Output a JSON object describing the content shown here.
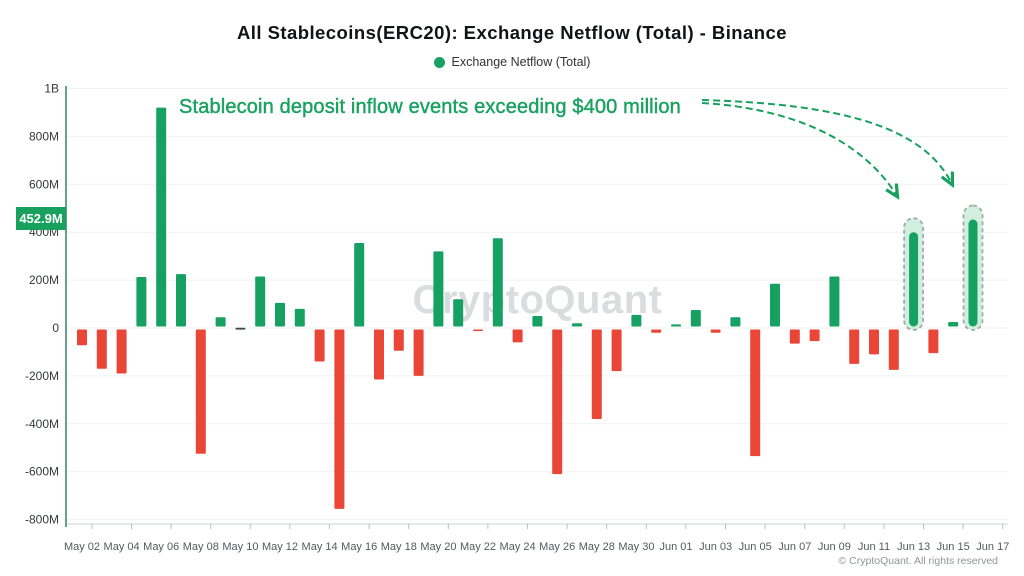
{
  "chart_data": {
    "type": "bar",
    "title": "All Stablecoins(ERC20): Exchange Netflow (Total) - Binance",
    "legend": "Exchange Netflow (Total)",
    "ylabel": "",
    "xlabel": "",
    "unit": "millions USD",
    "categories": [
      "May 02",
      "May 03",
      "May 04",
      "May 05",
      "May 06",
      "May 07",
      "May 08",
      "May 09",
      "May 10",
      "May 11",
      "May 12",
      "May 13",
      "May 14",
      "May 15",
      "May 16",
      "May 17",
      "May 18",
      "May 19",
      "May 20",
      "May 21",
      "May 22",
      "May 23",
      "May 24",
      "May 25",
      "May 26",
      "May 27",
      "May 28",
      "May 29",
      "May 30",
      "May 31",
      "Jun 01",
      "Jun 02",
      "Jun 03",
      "Jun 04",
      "Jun 05",
      "Jun 06",
      "Jun 07",
      "Jun 08",
      "Jun 09",
      "Jun 10",
      "Jun 11",
      "Jun 12",
      "Jun 13",
      "Jun 14",
      "Jun 15",
      "Jun 16",
      "Jun 17"
    ],
    "values": [
      -72,
      -170,
      -190,
      213,
      920,
      225,
      -525,
      45,
      0,
      215,
      105,
      80,
      -140,
      -755,
      355,
      -215,
      -95,
      -200,
      320,
      120,
      -10,
      375,
      -60,
      50,
      -610,
      20,
      -380,
      -180,
      55,
      -20,
      15,
      75,
      -20,
      45,
      -535,
      185,
      -65,
      -55,
      215,
      -150,
      -110,
      -175,
      400,
      -105,
      25,
      452.9,
      null
    ],
    "x_tick_labels": [
      "May 02",
      "May 04",
      "May 06",
      "May 08",
      "May 10",
      "May 12",
      "May 14",
      "May 16",
      "May 18",
      "May 20",
      "May 22",
      "May 24",
      "May 26",
      "May 28",
      "May 30",
      "Jun 01",
      "Jun 03",
      "Jun 05",
      "Jun 07",
      "Jun 09",
      "Jun 11",
      "Jun 13",
      "Jun 15",
      "Jun 17"
    ],
    "y_ticks": [
      {
        "label": "1B",
        "value": 1000
      },
      {
        "label": "800M",
        "value": 800
      },
      {
        "label": "600M",
        "value": 600
      },
      {
        "label": "400M",
        "value": 400
      },
      {
        "label": "200M",
        "value": 200
      },
      {
        "label": "0",
        "value": 0
      },
      {
        "label": "-200M",
        "value": -200
      },
      {
        "label": "-400M",
        "value": -400
      },
      {
        "label": "-600M",
        "value": -600
      },
      {
        "label": "-800M",
        "value": -800
      }
    ],
    "ylim": [
      -820,
      1000
    ],
    "grid": true,
    "legend_position": "top",
    "highlighted_categories": [
      "Jun 13",
      "Jun 16"
    ],
    "current_value_badge": {
      "label": "452.9M",
      "value": 452.9
    }
  },
  "annotation": {
    "text": "Stablecoin deposit inflow events exceeding $400 million"
  },
  "watermark": {
    "text": "CryptoQuant"
  },
  "footer": {
    "text": "© CryptoQuant. All rights reserved"
  },
  "colors": {
    "positive": "#16a163",
    "negative": "#ea4638",
    "zero_dash": "#3f4f48",
    "annotation": "#1ba261",
    "legend_marker": "#16a163",
    "badge_bg": "#17a05e",
    "y_axis_line": "#3e8a6e",
    "x_axis_line": "#cfd2d6",
    "tick": "#b9bdc2",
    "gridline": "#eff1f2",
    "y_label": "#36393c",
    "x_label": "#55595e",
    "highlight_fill": "#c9ecd9",
    "highlight_border": "#a2aca6",
    "arrow": "#17a05e"
  }
}
